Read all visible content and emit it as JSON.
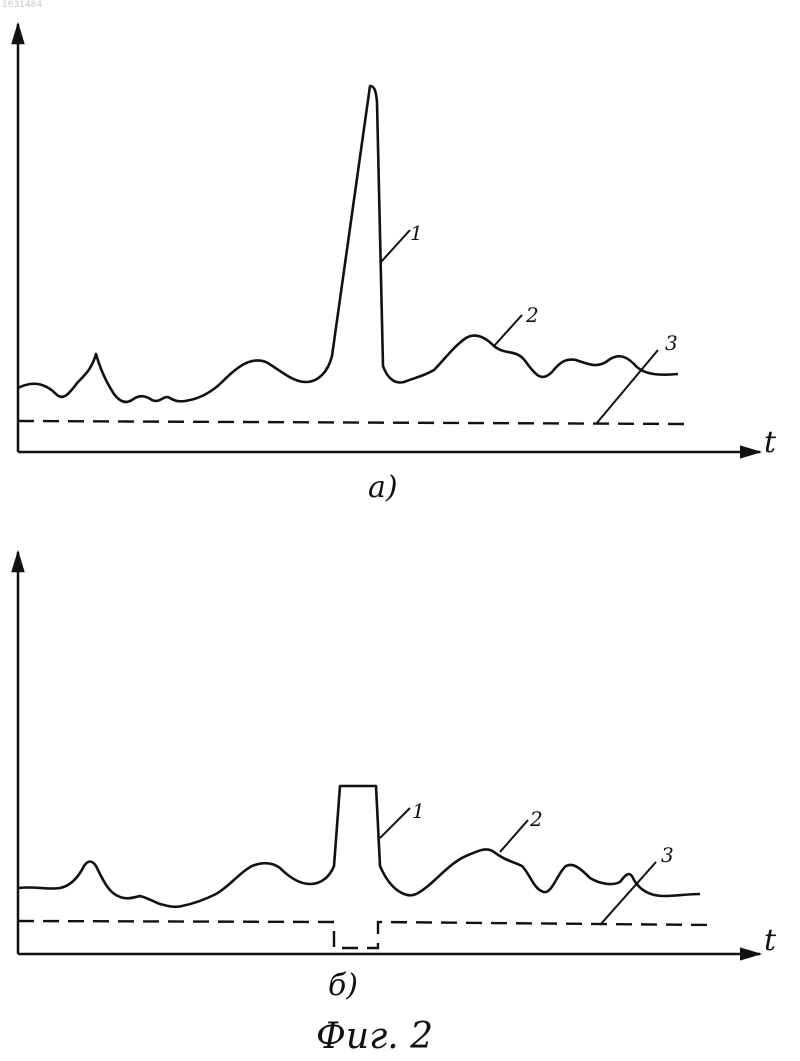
{
  "corner_number": "1631484",
  "caption": "Фиг. 2",
  "panels": [
    {
      "id": "a",
      "caption": "а)",
      "x_label": "t",
      "curve_labels": [
        "1",
        "2",
        "3"
      ]
    },
    {
      "id": "b",
      "caption": "б)",
      "x_label": "t",
      "curve_labels": [
        "1",
        "2",
        "3"
      ]
    }
  ],
  "line_color": "#111111"
}
